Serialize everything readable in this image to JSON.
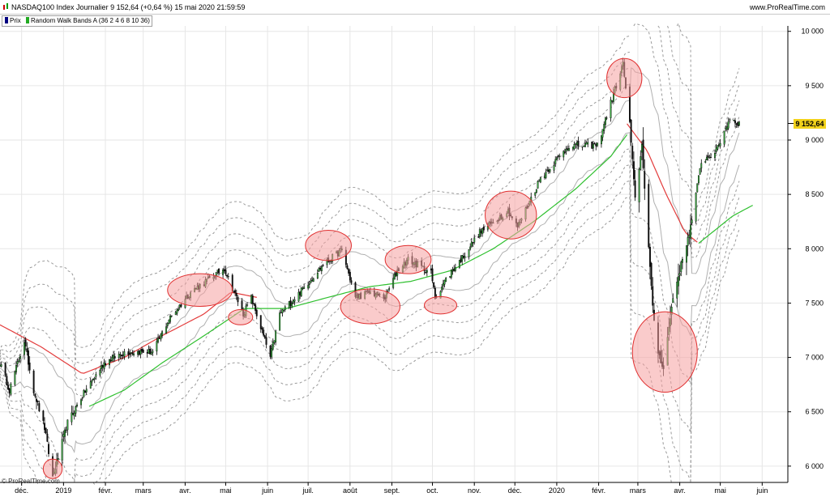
{
  "header": {
    "title": "NASDAQ100 Index Journalier 9 152,64 (+0,64 %) 15 mai 2020 21:59:59",
    "brand": "www.ProRealTime.com"
  },
  "legend": {
    "items": [
      {
        "label": "Prix",
        "color": "#000080"
      },
      {
        "label": "Random Walk Bands A (36 2 4 6 8 10 36)",
        "color": "#22aa22"
      }
    ]
  },
  "footer": "© ProRealTime.com",
  "colors": {
    "middle_line": "#e33b3b",
    "green_line": "#2fc02f",
    "solid_band": "#b0b0b0",
    "dashed_band": "#9a9a9a",
    "highlight_fill": "#f5a0a0",
    "highlight_stroke": "#e03030",
    "last_price_bg": "#f2d21a"
  },
  "chart_data": {
    "type": "candlestick",
    "y_axis": {
      "ylim": [
        5850,
        10050
      ],
      "ticks": [
        6000,
        6500,
        7000,
        7500,
        8000,
        8500,
        9000,
        9500,
        10000
      ],
      "tick_labels": [
        "6 000",
        "6 500",
        "7 000",
        "7 500",
        "8 000",
        "8 500",
        "9 000",
        "9 500",
        "10 000"
      ],
      "last_price_label": "9 152,64",
      "last_price": 9152.64
    },
    "x_axis": {
      "xlim": [
        "2018-11-15",
        "2020-06-20"
      ],
      "months": [
        {
          "label": "déc.",
          "date": "2018-12-01"
        },
        {
          "label": "2019",
          "date": "2019-01-01"
        },
        {
          "label": "févr.",
          "date": "2019-02-01"
        },
        {
          "label": "mars",
          "date": "2019-03-01"
        },
        {
          "label": "avr.",
          "date": "2019-04-01"
        },
        {
          "label": "mai",
          "date": "2019-05-01"
        },
        {
          "label": "juin",
          "date": "2019-06-01"
        },
        {
          "label": "juil.",
          "date": "2019-07-01"
        },
        {
          "label": "août",
          "date": "2019-08-01"
        },
        {
          "label": "sept.",
          "date": "2019-09-01"
        },
        {
          "label": "oct.",
          "date": "2019-10-01"
        },
        {
          "label": "nov.",
          "date": "2019-11-01"
        },
        {
          "label": "déc.",
          "date": "2019-12-01"
        },
        {
          "label": "2020",
          "date": "2020-01-01"
        },
        {
          "label": "févr.",
          "date": "2020-02-01"
        },
        {
          "label": "mars",
          "date": "2020-03-01"
        },
        {
          "label": "avr.",
          "date": "2020-04-01"
        },
        {
          "label": "mai",
          "date": "2020-05-01"
        },
        {
          "label": "juin",
          "date": "2020-06-01"
        }
      ]
    },
    "price_anchors": [
      [
        "2018-11-15",
        6950
      ],
      [
        "2018-11-22",
        6700
      ],
      [
        "2018-12-03",
        7150
      ],
      [
        "2018-12-10",
        6700
      ],
      [
        "2018-12-18",
        6350
      ],
      [
        "2018-12-24",
        5900
      ],
      [
        "2019-01-04",
        6400
      ],
      [
        "2019-01-15",
        6650
      ],
      [
        "2019-01-31",
        6950
      ],
      [
        "2019-02-15",
        7050
      ],
      [
        "2019-03-08",
        7050
      ],
      [
        "2019-03-20",
        7350
      ],
      [
        "2019-04-05",
        7600
      ],
      [
        "2019-04-30",
        7820
      ],
      [
        "2019-05-14",
        7400
      ],
      [
        "2019-05-20",
        7550
      ],
      [
        "2019-06-03",
        7000
      ],
      [
        "2019-06-10",
        7400
      ],
      [
        "2019-06-25",
        7600
      ],
      [
        "2019-07-12",
        7850
      ],
      [
        "2019-07-26",
        7990
      ],
      [
        "2019-08-05",
        7550
      ],
      [
        "2019-08-15",
        7600
      ],
      [
        "2019-08-27",
        7550
      ],
      [
        "2019-09-05",
        7800
      ],
      [
        "2019-09-13",
        7900
      ],
      [
        "2019-09-30",
        7780
      ],
      [
        "2019-10-03",
        7550
      ],
      [
        "2019-10-10",
        7700
      ],
      [
        "2019-10-22",
        7900
      ],
      [
        "2019-11-05",
        8150
      ],
      [
        "2019-11-26",
        8350
      ],
      [
        "2019-12-03",
        8200
      ],
      [
        "2019-12-20",
        8650
      ],
      [
        "2020-01-10",
        8950
      ],
      [
        "2020-01-31",
        8950
      ],
      [
        "2020-02-19",
        9700
      ],
      [
        "2020-02-24",
        9150
      ],
      [
        "2020-02-28",
        8450
      ],
      [
        "2020-03-04",
        8950
      ],
      [
        "2020-03-12",
        7450
      ],
      [
        "2020-03-16",
        7050
      ],
      [
        "2020-03-20",
        6900
      ],
      [
        "2020-03-27",
        7550
      ],
      [
        "2020-04-09",
        8200
      ],
      [
        "2020-04-17",
        8800
      ],
      [
        "2020-04-28",
        8900
      ],
      [
        "2020-05-08",
        9200
      ],
      [
        "2020-05-15",
        9150
      ]
    ],
    "bands": {
      "middle_line": [
        [
          "2018-11-15",
          7300
        ],
        [
          "2018-12-15",
          7100
        ],
        [
          "2019-01-15",
          6850
        ],
        [
          "2019-02-15",
          7000
        ],
        [
          "2019-03-15",
          7200
        ],
        [
          "2019-04-15",
          7400
        ],
        [
          "2019-05-05",
          7600
        ],
        [
          "2019-05-25",
          7550
        ]
      ],
      "green_line": [
        [
          "2019-01-20",
          6550
        ],
        [
          "2019-02-15",
          6700
        ],
        [
          "2019-03-15",
          6950
        ],
        [
          "2019-04-15",
          7200
        ],
        [
          "2019-05-15",
          7450
        ],
        [
          "2019-06-15",
          7450
        ],
        [
          "2019-07-15",
          7550
        ],
        [
          "2019-08-15",
          7650
        ],
        [
          "2019-09-15",
          7700
        ],
        [
          "2019-10-15",
          7800
        ],
        [
          "2019-11-15",
          8000
        ],
        [
          "2019-12-15",
          8250
        ],
        [
          "2020-01-15",
          8550
        ],
        [
          "2020-02-10",
          8850
        ],
        [
          "2020-02-22",
          9050
        ]
      ],
      "middle_line_2020": [
        [
          "2020-02-22",
          9150
        ],
        [
          "2020-03-08",
          8900
        ],
        [
          "2020-03-22",
          8500
        ],
        [
          "2020-04-05",
          8150
        ],
        [
          "2020-04-15",
          8050
        ]
      ],
      "green_line_2020": [
        [
          "2020-04-15",
          8050
        ],
        [
          "2020-04-25",
          8150
        ],
        [
          "2020-05-10",
          8300
        ],
        [
          "2020-05-25",
          8400
        ]
      ]
    },
    "highlights": [
      {
        "date": "2018-12-24",
        "value": 5975,
        "w_days": 7,
        "h_value": 90
      },
      {
        "date": "2019-04-12",
        "value": 7620,
        "w_days": 24,
        "h_value": 150
      },
      {
        "date": "2019-05-12",
        "value": 7370,
        "w_days": 9,
        "h_value": 70
      },
      {
        "date": "2019-07-16",
        "value": 8030,
        "w_days": 17,
        "h_value": 140
      },
      {
        "date": "2019-08-16",
        "value": 7470,
        "w_days": 22,
        "h_value": 160
      },
      {
        "date": "2019-09-13",
        "value": 7900,
        "w_days": 17,
        "h_value": 130
      },
      {
        "date": "2019-10-07",
        "value": 7480,
        "w_days": 12,
        "h_value": 80
      },
      {
        "date": "2019-11-28",
        "value": 8310,
        "w_days": 19,
        "h_value": 220
      },
      {
        "date": "2020-02-20",
        "value": 9570,
        "w_days": 13,
        "h_value": 180
      },
      {
        "date": "2020-03-21",
        "value": 7050,
        "w_days": 24,
        "h_value": 370
      }
    ]
  }
}
